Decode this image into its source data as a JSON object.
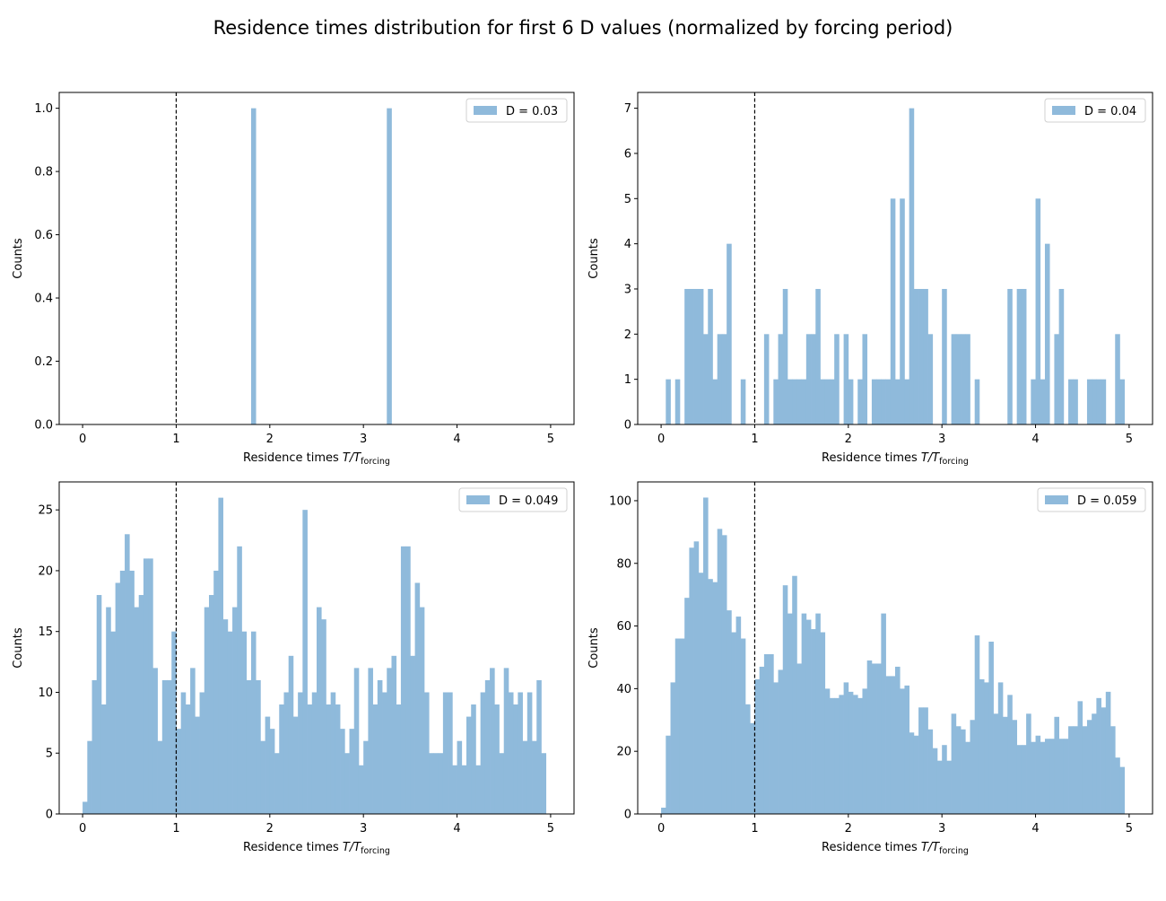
{
  "figure": {
    "title": "Residence times distribution for first 6 D values (normalized by forcing period)"
  },
  "style": {
    "bar_color": "#8fbadb",
    "vline_color": "#000000"
  },
  "chart_data": [
    {
      "type": "bar",
      "xlabel_prefix": "Residence times ",
      "xlabel_math": "T/T",
      "xlabel_sub": "forcing",
      "ylabel": "Counts",
      "xlim": [
        -0.25,
        5.25
      ],
      "ylim": [
        0,
        1.05
      ],
      "xticks": [
        "0",
        "1",
        "2",
        "3",
        "4",
        "5"
      ],
      "yticks": [
        "0.0",
        "0.2",
        "0.4",
        "0.6",
        "0.8",
        "1.0"
      ],
      "yticks_values": [
        0,
        0.2,
        0.4,
        0.6,
        0.8,
        1.0
      ],
      "legend": "D = 0.03",
      "legend_position": "top-right",
      "vline_x": 1,
      "bin_width": 0.05,
      "x_start": 0,
      "values": [
        0,
        0,
        0,
        0,
        0,
        0,
        0,
        0,
        0,
        0,
        0,
        0,
        0,
        0,
        0,
        0,
        0,
        0,
        0,
        0,
        0,
        0,
        0,
        0,
        0,
        0,
        0,
        0,
        0,
        0,
        0,
        0,
        0,
        0,
        0,
        0,
        1,
        0,
        0,
        0,
        0,
        0,
        0,
        0,
        0,
        0,
        0,
        0,
        0,
        0,
        0,
        0,
        0,
        0,
        0,
        0,
        0,
        0,
        0,
        0,
        0,
        0,
        0,
        0,
        0,
        1,
        0,
        0,
        0,
        0,
        0,
        0,
        0,
        0,
        0,
        0,
        0,
        0,
        0,
        0,
        0,
        0,
        0,
        0,
        0,
        0,
        0,
        0,
        0,
        0,
        0,
        0,
        0,
        0,
        0,
        0,
        0,
        0,
        0,
        0
      ]
    },
    {
      "type": "bar",
      "xlabel_prefix": "Residence times ",
      "xlabel_math": "T/T",
      "xlabel_sub": "forcing",
      "ylabel": "Counts",
      "xlim": [
        -0.25,
        5.25
      ],
      "ylim": [
        0,
        7.35
      ],
      "xticks": [
        "0",
        "1",
        "2",
        "3",
        "4",
        "5"
      ],
      "yticks": [
        "0",
        "1",
        "2",
        "3",
        "4",
        "5",
        "6",
        "7"
      ],
      "yticks_values": [
        0,
        1,
        2,
        3,
        4,
        5,
        6,
        7
      ],
      "legend": "D = 0.04",
      "legend_position": "top-right",
      "vline_x": 1,
      "bin_width": 0.05,
      "x_start": 0,
      "values": [
        0,
        1,
        0,
        1,
        0,
        3,
        3,
        3,
        3,
        2,
        3,
        1,
        2,
        2,
        4,
        0,
        0,
        1,
        0,
        0,
        0,
        0,
        2,
        0,
        1,
        2,
        3,
        1,
        1,
        1,
        1,
        2,
        2,
        3,
        1,
        1,
        1,
        2,
        0,
        2,
        1,
        0,
        1,
        2,
        0,
        1,
        1,
        1,
        1,
        5,
        1,
        5,
        1,
        7,
        3,
        3,
        3,
        2,
        0,
        0,
        3,
        0,
        2,
        2,
        2,
        2,
        0,
        1,
        0,
        0,
        0,
        0,
        0,
        0,
        3,
        0,
        3,
        3,
        0,
        1,
        5,
        1,
        4,
        0,
        2,
        3,
        0,
        1,
        1,
        0,
        0,
        1,
        1,
        1,
        1,
        0,
        0,
        2,
        1,
        0
      ]
    },
    {
      "type": "bar",
      "xlabel_prefix": "Residence times ",
      "xlabel_math": "T/T",
      "xlabel_sub": "forcing",
      "ylabel": "Counts",
      "xlim": [
        -0.25,
        5.25
      ],
      "ylim": [
        0,
        27.3
      ],
      "xticks": [
        "0",
        "1",
        "2",
        "3",
        "4",
        "5"
      ],
      "yticks": [
        "0",
        "5",
        "10",
        "15",
        "20",
        "25"
      ],
      "yticks_values": [
        0,
        5,
        10,
        15,
        20,
        25
      ],
      "legend": "D = 0.049",
      "legend_position": "top-right",
      "vline_x": 1,
      "bin_width": 0.05,
      "x_start": 0,
      "values": [
        1,
        6,
        11,
        18,
        9,
        17,
        15,
        19,
        20,
        23,
        20,
        17,
        18,
        21,
        21,
        12,
        6,
        11,
        11,
        15,
        7,
        10,
        9,
        12,
        8,
        10,
        17,
        18,
        20,
        26,
        16,
        15,
        17,
        22,
        15,
        11,
        15,
        11,
        6,
        8,
        7,
        5,
        9,
        10,
        13,
        8,
        10,
        25,
        9,
        10,
        17,
        16,
        9,
        10,
        9,
        7,
        5,
        7,
        12,
        4,
        6,
        12,
        9,
        11,
        10,
        12,
        13,
        9,
        22,
        22,
        13,
        19,
        17,
        10,
        5,
        5,
        5,
        10,
        10,
        4,
        6,
        4,
        8,
        9,
        4,
        10,
        11,
        12,
        9,
        5,
        12,
        10,
        9,
        10,
        6,
        10,
        6,
        11,
        5,
        0
      ]
    },
    {
      "type": "bar",
      "xlabel_prefix": "Residence times ",
      "xlabel_math": "T/T",
      "xlabel_sub": "forcing",
      "ylabel": "Counts",
      "xlim": [
        -0.25,
        5.25
      ],
      "ylim": [
        0,
        106
      ],
      "xticks": [
        "0",
        "1",
        "2",
        "3",
        "4",
        "5"
      ],
      "yticks": [
        "0",
        "20",
        "40",
        "60",
        "80",
        "100"
      ],
      "yticks_values": [
        0,
        20,
        40,
        60,
        80,
        100
      ],
      "legend": "D = 0.059",
      "legend_position": "top-right",
      "vline_x": 1,
      "bin_width": 0.05,
      "x_start": 0,
      "values": [
        2,
        25,
        42,
        56,
        56,
        69,
        85,
        87,
        77,
        101,
        75,
        74,
        91,
        89,
        65,
        58,
        63,
        56,
        35,
        29,
        43,
        47,
        51,
        51,
        42,
        46,
        73,
        64,
        76,
        48,
        64,
        62,
        59,
        64,
        58,
        40,
        37,
        37,
        38,
        42,
        39,
        38,
        37,
        40,
        49,
        48,
        48,
        64,
        44,
        44,
        47,
        40,
        41,
        26,
        25,
        34,
        34,
        27,
        21,
        17,
        22,
        17,
        32,
        28,
        27,
        23,
        30,
        57,
        43,
        42,
        55,
        32,
        42,
        31,
        38,
        30,
        22,
        22,
        32,
        23,
        25,
        23,
        24,
        24,
        31,
        24,
        24,
        28,
        28,
        36,
        28,
        30,
        32,
        37,
        34,
        39,
        28,
        18,
        15,
        0
      ]
    }
  ]
}
